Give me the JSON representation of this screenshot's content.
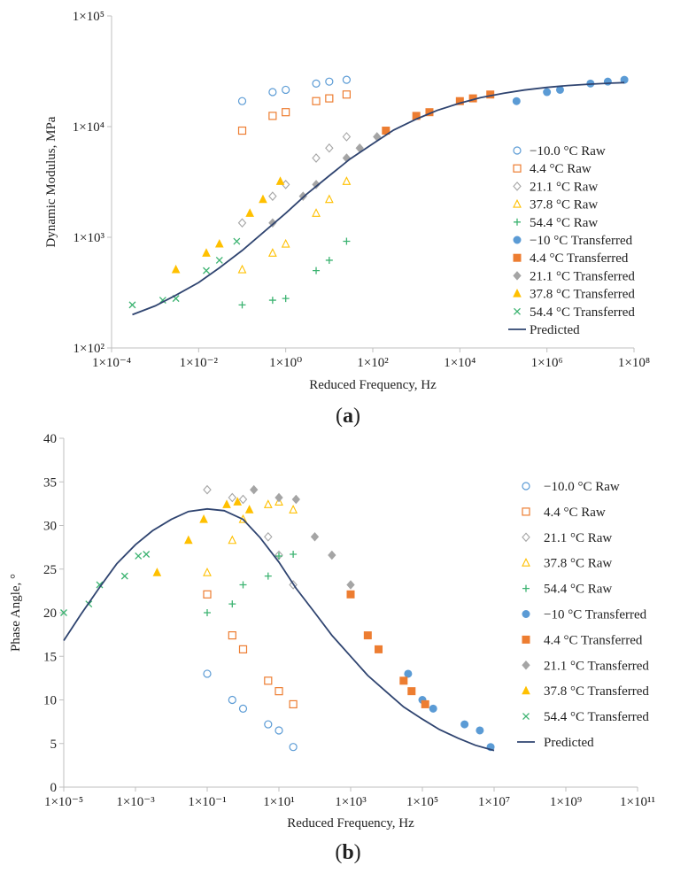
{
  "colors": {
    "m10": "#5b9bd5",
    "c4": "#ed7d31",
    "c21": "#a5a5a5",
    "c38": "#ffc000",
    "c54": "#3cb371",
    "predicted": "#2f4470",
    "axis": "#bfbfbf"
  },
  "chart_data": [
    {
      "type": "scatter",
      "panel_label": "(a)",
      "panel_letter": "a",
      "xlabel": "Reduced Frequency, Hz",
      "ylabel": "Dynamic Modulus, MPa",
      "xscale": "log",
      "yscale": "log",
      "xlim": [
        0.0001,
        100000000
      ],
      "ylim": [
        100,
        100000
      ],
      "grid": false,
      "legend_position": "right",
      "x_tick_labels": [
        "1×10⁻⁴",
        "1×10⁻²",
        "1×10⁰",
        "1×10²",
        "1×10⁴",
        "1×10⁶",
        "1×10⁸"
      ],
      "y_tick_labels": [
        "1×10²",
        "1×10³",
        "1×10⁴",
        "1×10⁵"
      ],
      "series": [
        {
          "name": "−10.0 °C Raw",
          "marker": "circle-open",
          "color_key": "m10",
          "x": [
            0.1,
            0.5,
            1,
            5,
            10,
            25
          ],
          "y": [
            17000,
            20500,
            21500,
            24500,
            25500,
            26500
          ]
        },
        {
          "name": "4.4 °C Raw",
          "marker": "square-open",
          "color_key": "c4",
          "x": [
            0.1,
            0.5,
            1,
            5,
            10,
            25
          ],
          "y": [
            9200,
            12500,
            13500,
            17000,
            18000,
            19500
          ]
        },
        {
          "name": "21.1 °C Raw",
          "marker": "diamond-open",
          "color_key": "c21",
          "x": [
            0.1,
            0.5,
            1,
            5,
            10,
            25
          ],
          "y": [
            1350,
            2350,
            3000,
            5200,
            6400,
            8100
          ]
        },
        {
          "name": "37.8 °C Raw",
          "marker": "triangle-open",
          "color_key": "c38",
          "x": [
            0.1,
            0.5,
            1,
            5,
            10,
            25
          ],
          "y": [
            510,
            720,
            870,
            1650,
            2200,
            3200
          ]
        },
        {
          "name": "54.4 °C Raw",
          "marker": "plus",
          "color_key": "c54",
          "x": [
            0.1,
            0.5,
            1,
            5,
            10,
            25
          ],
          "y": [
            245,
            270,
            280,
            500,
            620,
            920
          ]
        },
        {
          "name": "−10 °C Transferred",
          "marker": "circle",
          "color_key": "m10",
          "x": [
            200000,
            1000000,
            2000000,
            10000000,
            25000000,
            60000000
          ],
          "y": [
            17000,
            20500,
            21500,
            24500,
            25500,
            26500
          ]
        },
        {
          "name": "4.4 °C Transferred",
          "marker": "square",
          "color_key": "c4",
          "x": [
            200,
            1000,
            2000,
            10000,
            20000,
            50000
          ],
          "y": [
            9200,
            12500,
            13500,
            17000,
            18000,
            19500
          ]
        },
        {
          "name": "21.1 °C Transferred",
          "marker": "diamond",
          "color_key": "c21",
          "x": [
            0.5,
            2.5,
            5,
            25,
            50,
            125
          ],
          "y": [
            1350,
            2350,
            3000,
            5200,
            6400,
            8100
          ]
        },
        {
          "name": "37.8 °C Transferred",
          "marker": "triangle",
          "color_key": "c38",
          "x": [
            0.003,
            0.015,
            0.03,
            0.15,
            0.3,
            0.75
          ],
          "y": [
            510,
            720,
            870,
            1650,
            2200,
            3200
          ]
        },
        {
          "name": "54.4 °C Transferred",
          "marker": "x",
          "color_key": "c54",
          "x": [
            0.0003,
            0.0015,
            0.003,
            0.015,
            0.03,
            0.075
          ],
          "y": [
            245,
            270,
            280,
            500,
            620,
            920
          ]
        },
        {
          "name": "Predicted",
          "marker": "line",
          "color_key": "predicted",
          "x": [
            0.0003,
            0.001,
            0.003,
            0.01,
            0.03,
            0.1,
            0.3,
            1,
            3,
            10,
            30,
            100,
            300,
            1000,
            3000,
            10000,
            30000,
            100000,
            300000,
            1000000,
            3000000,
            10000000,
            30000000,
            60000000
          ],
          "y": [
            200,
            240,
            300,
            390,
            530,
            760,
            1100,
            1650,
            2450,
            3600,
            5100,
            7000,
            9300,
            11700,
            14000,
            16300,
            18300,
            20000,
            21400,
            22600,
            23500,
            24200,
            24700,
            25000
          ]
        }
      ]
    },
    {
      "type": "scatter",
      "panel_label": "(b)",
      "panel_letter": "b",
      "xlabel": "Reduced Frequency, Hz",
      "ylabel": "Phase Angle, °",
      "xscale": "log",
      "yscale": "linear",
      "xlim": [
        1e-05,
        100000000000
      ],
      "ylim": [
        0,
        40
      ],
      "grid": false,
      "legend_position": "right",
      "x_tick_labels": [
        "1×10⁻⁵",
        "1×10⁻³",
        "1×10⁻¹",
        "1×10¹",
        "1×10³",
        "1×10⁵",
        "1×10⁷",
        "1×10⁹",
        "1×10¹¹"
      ],
      "y_tick_labels": [
        "0",
        "5",
        "10",
        "15",
        "20",
        "25",
        "30",
        "35",
        "40"
      ],
      "series": [
        {
          "name": "−10.0 °C Raw",
          "marker": "circle-open",
          "color_key": "m10",
          "x": [
            0.1,
            0.5,
            1,
            5,
            10,
            25
          ],
          "y": [
            13,
            10,
            9,
            7.2,
            6.5,
            4.6
          ]
        },
        {
          "name": "4.4 °C Raw",
          "marker": "square-open",
          "color_key": "c4",
          "x": [
            0.1,
            0.5,
            1,
            5,
            10,
            25
          ],
          "y": [
            22.1,
            17.4,
            15.8,
            12.2,
            11,
            9.5
          ]
        },
        {
          "name": "21.1 °C Raw",
          "marker": "diamond-open",
          "color_key": "c21",
          "x": [
            0.1,
            0.5,
            1,
            5,
            10,
            25
          ],
          "y": [
            34.1,
            33.2,
            33,
            28.7,
            26.6,
            23.2
          ]
        },
        {
          "name": "37.8 °C Raw",
          "marker": "triangle-open",
          "color_key": "c38",
          "x": [
            0.1,
            0.5,
            1,
            5,
            10,
            25
          ],
          "y": [
            24.6,
            28.3,
            30.7,
            32.4,
            32.7,
            31.8
          ]
        },
        {
          "name": "54.4 °C Raw",
          "marker": "plus",
          "color_key": "c54",
          "x": [
            0.1,
            0.5,
            1,
            5,
            10,
            25
          ],
          "y": [
            20,
            21,
            23.2,
            24.2,
            26.5,
            26.7
          ]
        },
        {
          "name": "−10 °C Transferred",
          "marker": "circle",
          "color_key": "m10",
          "x": [
            40000,
            100000,
            200000,
            1500000,
            4000000,
            8000000
          ],
          "y": [
            13,
            10,
            9,
            7.2,
            6.5,
            4.6
          ]
        },
        {
          "name": "4.4 °C Transferred",
          "marker": "square",
          "color_key": "c4",
          "x": [
            1000,
            3000,
            6000,
            30000,
            50000,
            120000
          ],
          "y": [
            22.1,
            17.4,
            15.8,
            12.2,
            11,
            9.5
          ]
        },
        {
          "name": "21.1 °C Transferred",
          "marker": "diamond",
          "color_key": "c21",
          "x": [
            2,
            10,
            30,
            100,
            300,
            1000
          ],
          "y": [
            34.1,
            33.2,
            33,
            28.7,
            26.6,
            23.2
          ]
        },
        {
          "name": "37.8 °C Transferred",
          "marker": "triangle",
          "color_key": "c38",
          "x": [
            0.004,
            0.03,
            0.08,
            0.35,
            0.7,
            1.5
          ],
          "y": [
            24.6,
            28.3,
            30.7,
            32.4,
            32.7,
            31.8
          ]
        },
        {
          "name": "54.4 °C Transferred",
          "marker": "x",
          "color_key": "c54",
          "x": [
            1e-05,
            5e-05,
            0.0001,
            0.0005,
            0.0012,
            0.002
          ],
          "y": [
            20,
            21,
            23.2,
            24.2,
            26.5,
            26.7
          ]
        },
        {
          "name": "Predicted",
          "marker": "line",
          "color_key": "predicted",
          "x": [
            1e-05,
            3e-05,
            0.0001,
            0.0003,
            0.001,
            0.003,
            0.01,
            0.03,
            0.1,
            0.3,
            1,
            3,
            10,
            30,
            100,
            300,
            1000,
            3000,
            10000,
            30000,
            100000,
            300000,
            1000000,
            3000000,
            10000000
          ],
          "y": [
            16.8,
            19.8,
            22.9,
            25.6,
            27.8,
            29.4,
            30.7,
            31.6,
            31.9,
            31.7,
            30.7,
            28.6,
            25.8,
            22.8,
            20.0,
            17.4,
            15.0,
            12.8,
            10.9,
            9.2,
            7.8,
            6.6,
            5.6,
            4.8,
            4.2
          ]
        }
      ]
    }
  ]
}
